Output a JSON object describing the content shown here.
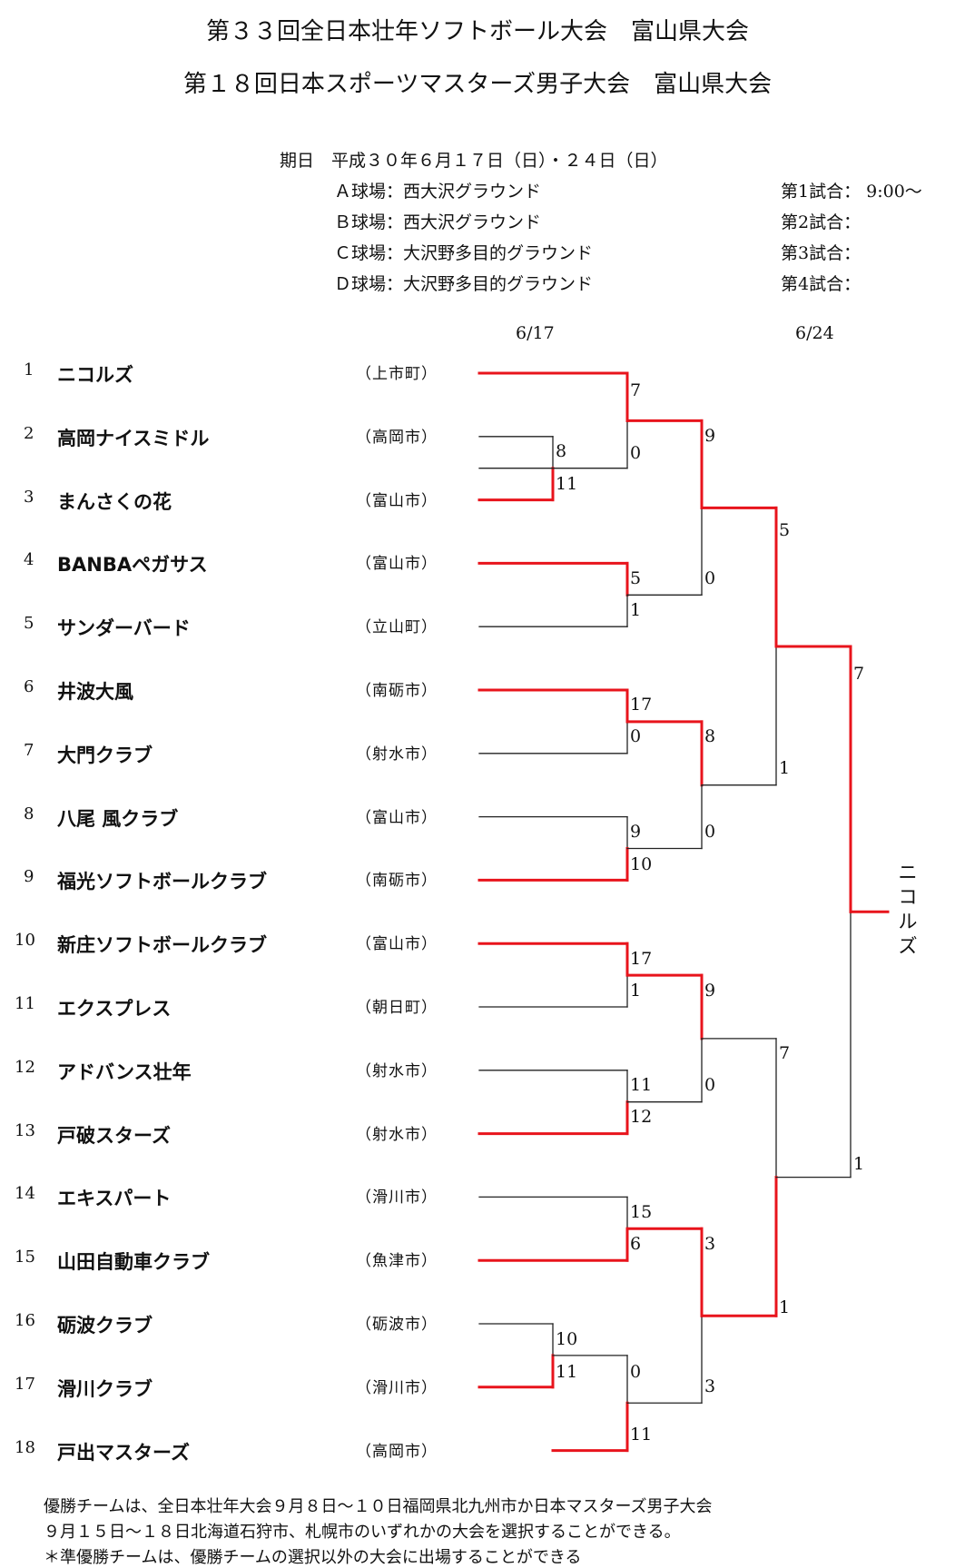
{
  "titles": {
    "line1": "第３３回全日本壮年ソフトボール大会　富山県大会",
    "line2": "第１８回日本スポーツマスターズ男子大会　富山県大会"
  },
  "schedule": {
    "date_line": "期日　平成３０年６月１７日（日）・２４日（日）",
    "venues": [
      "Ａ球場：西大沢グラウンド",
      "Ｂ球場：西大沢グラウンド",
      "Ｃ球場：大沢野多目的グラウンド",
      "Ｄ球場：大沢野多目的グラウンド"
    ],
    "matches": [
      "第1試合：  9:00～",
      "第2試合：",
      "第3試合：",
      "第4試合："
    ]
  },
  "round_dates": [
    "6/17",
    "6/24"
  ],
  "teams": [
    {
      "num": "1",
      "name": "ニコルズ",
      "city": "（上市町）"
    },
    {
      "num": "2",
      "name": "高岡ナイスミドル",
      "city": "（高岡市）"
    },
    {
      "num": "3",
      "name": "まんさくの花",
      "city": "（富山市）"
    },
    {
      "num": "4",
      "name": "BANBAペガサス",
      "city": "（富山市）"
    },
    {
      "num": "5",
      "name": "サンダーバード",
      "city": "（立山町）"
    },
    {
      "num": "6",
      "name": "井波大風",
      "city": "（南砺市）"
    },
    {
      "num": "7",
      "name": "大門クラブ",
      "city": "（射水市）"
    },
    {
      "num": "8",
      "name": "八尾 風クラブ",
      "city": "（富山市）"
    },
    {
      "num": "9",
      "name": "福光ソフトボールクラブ",
      "city": "（南砺市）"
    },
    {
      "num": "10",
      "name": "新庄ソフトボールクラブ",
      "city": "（富山市）"
    },
    {
      "num": "11",
      "name": "エクスプレス",
      "city": "（朝日町）"
    },
    {
      "num": "12",
      "name": "アドバンス壮年",
      "city": "（射水市）"
    },
    {
      "num": "13",
      "name": "戸破スターズ",
      "city": "（射水市）"
    },
    {
      "num": "14",
      "name": "エキスパート",
      "city": "（滑川市）"
    },
    {
      "num": "15",
      "name": "山田自動車クラブ",
      "city": "（魚津市）"
    },
    {
      "num": "16",
      "name": "砺波クラブ",
      "city": "（砺波市）"
    },
    {
      "num": "17",
      "name": "滑川クラブ",
      "city": "（滑川市）"
    },
    {
      "num": "18",
      "name": "戸出マスターズ",
      "city": "（高岡市）"
    }
  ],
  "scores": [
    "7",
    "8",
    "11",
    "0",
    "9",
    "5",
    "1",
    "0",
    "5",
    "17",
    "0",
    "8",
    "1",
    "9",
    "10",
    "0",
    "7",
    "17",
    "1",
    "9",
    "11",
    "12",
    "0",
    "7",
    "1",
    "15",
    "6",
    "3",
    "1",
    "10",
    "11",
    "0",
    "3",
    "11"
  ],
  "champion": "ニコルズ",
  "notes": [
    "優勝チームは、全日本壮年大会９月８日～１０日福岡県北九州市か日本マスターズ男子大会",
    "９月１５日～１８日北海道石狩市、札幌市のいずれかの大会を選択することができる。",
    "＊準優勝チームは、優勝チームの選択以外の大会に出場することができる"
  ],
  "colors": {
    "winner_line": "#e8141c",
    "loser_line": "#222222"
  }
}
